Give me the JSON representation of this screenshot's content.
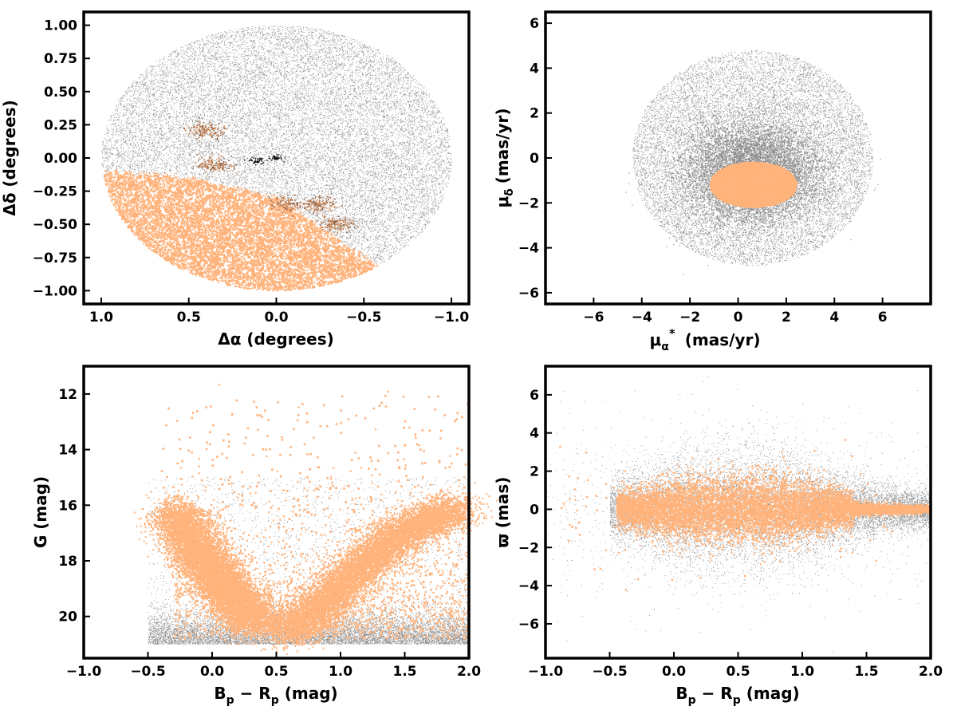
{
  "figure": {
    "panels_count": 4
  },
  "colors": {
    "field_stars": "#8c8c8c",
    "members": "#ffb27a",
    "members_dark": "#c8875a",
    "substructure": "#8a5a3a",
    "core": "#000000",
    "axis": "#000000"
  },
  "chart_data": [
    {
      "type": "scatter",
      "panel": "sky-positions",
      "title": "",
      "xlabel": "Δα (degrees)",
      "ylabel": "Δδ (degrees)",
      "xlim": [
        1.1,
        -1.1
      ],
      "ylim": [
        -1.1,
        1.1
      ],
      "x_inverted": true,
      "xticks": [
        1.0,
        0.5,
        0.0,
        -0.5,
        -1.0
      ],
      "xtick_labels": [
        "1.0",
        "0.5",
        "0.0",
        "−0.5",
        "−1.0"
      ],
      "yticks": [
        1.0,
        0.75,
        0.5,
        0.25,
        0.0,
        -0.25,
        -0.5,
        -0.75,
        -1.0
      ],
      "ytick_labels": [
        "1.00",
        "0.75",
        "0.50",
        "0.25",
        "0.00",
        "−0.25",
        "−0.50",
        "−0.75",
        "−1.00"
      ],
      "series": [
        {
          "role": "field",
          "shape": "disk",
          "center": [
            0.0,
            0.0
          ],
          "radius_x": 1.0,
          "radius_y": 1.0
        },
        {
          "role": "members",
          "region": "southern part of the disk, boundary from (1.0,-0.1) through (0.5,-0.15) and (0.0,-0.3) to (-0.5,-0.75)"
        },
        {
          "role": "substructure",
          "clumps": [
            [
              0.4,
              0.2
            ],
            [
              0.35,
              -0.05
            ],
            [
              -0.05,
              -0.35
            ],
            [
              -0.25,
              -0.35
            ],
            [
              -0.35,
              -0.5
            ]
          ]
        },
        {
          "role": "core",
          "clumps": [
            [
              0.0,
              0.0
            ],
            [
              0.12,
              -0.02
            ]
          ]
        }
      ],
      "grid": false,
      "legend": "none"
    },
    {
      "type": "scatter",
      "panel": "proper-motions",
      "title": "",
      "xlabel": "μα* (mas/yr)",
      "xlabel_base": "μ",
      "xlabel_sub": "α",
      "xlabel_sup": "*",
      "xlabel_unit": "(mas/yr)",
      "ylabel": "μδ (mas/yr)",
      "ylabel_base": "μ",
      "ylabel_sub": "δ",
      "ylabel_unit": "(mas/yr)",
      "xlim": [
        -8,
        8
      ],
      "ylim": [
        -6.5,
        6.5
      ],
      "xticks": [
        -6,
        -4,
        -2,
        0,
        2,
        4,
        6
      ],
      "xtick_labels": [
        "−6",
        "−4",
        "−2",
        "0",
        "2",
        "4",
        "6"
      ],
      "yticks": [
        -6,
        -4,
        -2,
        0,
        2,
        4,
        6
      ],
      "ytick_labels": [
        "−6",
        "−4",
        "−2",
        "0",
        "2",
        "4",
        "6"
      ],
      "series": [
        {
          "role": "field",
          "shape": "disk",
          "center": [
            0.6,
            0.0
          ],
          "radius": 5.0
        },
        {
          "role": "members",
          "shape": "ellipse",
          "center": [
            0.6,
            -1.2
          ],
          "radius_x": 1.8,
          "radius_y": 1.0
        }
      ],
      "grid": false,
      "legend": "none"
    },
    {
      "type": "scatter",
      "panel": "color-magnitude-diagram",
      "title": "",
      "xlabel": "Bp − Rp (mag)",
      "xlabel_parts": [
        "B",
        "p",
        " − R",
        "p",
        " (mag)"
      ],
      "ylabel": "G (mag)",
      "xlim": [
        -1.0,
        2.0
      ],
      "ylim": [
        21.5,
        11.0
      ],
      "y_inverted": true,
      "xticks": [
        -1.0,
        -0.5,
        0.0,
        0.5,
        1.0,
        1.5,
        2.0
      ],
      "xtick_labels": [
        "−1.0",
        "−0.5",
        "0.0",
        "0.5",
        "1.0",
        "1.5",
        "2.0"
      ],
      "yticks": [
        20,
        18,
        16,
        14,
        12
      ],
      "ytick_labels": [
        "20",
        "18",
        "16",
        "14",
        "12"
      ],
      "series": [
        {
          "role": "field",
          "x_range": [
            -0.5,
            2.0
          ],
          "faint_limit": 21.0
        },
        {
          "role": "members",
          "branches": [
            {
              "color_at_mag": [
                [
                  -0.3,
                  16.2
                ],
                [
                  -0.1,
                  17.8
                ],
                [
                  0.1,
                  19.0
                ],
                [
                  0.35,
                  20.3
                ]
              ]
            },
            {
              "color_at_mag": [
                [
                  0.6,
                  20.6
                ],
                [
                  0.9,
                  19.4
                ],
                [
                  1.2,
                  18.0
                ],
                [
                  1.5,
                  16.9
                ],
                [
                  1.9,
                  16.1
                ]
              ]
            }
          ]
        }
      ],
      "grid": false,
      "legend": "none"
    },
    {
      "type": "scatter",
      "panel": "parallax-vs-color",
      "title": "",
      "xlabel": "Bp − Rp (mag)",
      "xlabel_parts": [
        "B",
        "p",
        " − R",
        "p",
        " (mag)"
      ],
      "ylabel": "ϖ (mas)",
      "xlim": [
        -1.0,
        2.0
      ],
      "ylim": [
        -7.8,
        7.5
      ],
      "xticks": [
        -1.0,
        -0.5,
        0.0,
        0.5,
        1.0,
        1.5,
        2.0
      ],
      "xtick_labels": [
        "−1.0",
        "−0.5",
        "0.0",
        "0.5",
        "1.0",
        "1.5",
        "2.0"
      ],
      "yticks": [
        6,
        4,
        2,
        0,
        -2,
        -4,
        -6
      ],
      "ytick_labels": [
        "6",
        "4",
        "2",
        "0",
        "−2",
        "−4",
        "−6"
      ],
      "series": [
        {
          "role": "field",
          "center": 0.0,
          "spread": 1.2
        },
        {
          "role": "members",
          "center": 0.0,
          "spread": 0.7
        }
      ],
      "grid": false,
      "legend": "none"
    }
  ]
}
